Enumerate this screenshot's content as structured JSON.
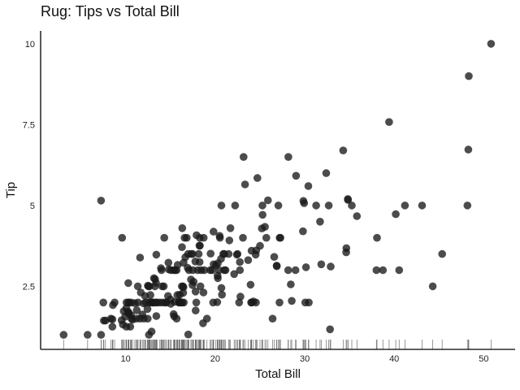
{
  "chart_data": {
    "type": "scatter",
    "title": "Rug: Tips vs Total Bill",
    "xlabel": "Total Bill",
    "ylabel": "Tip",
    "xlim": [
      0.5,
      53.5
    ],
    "ylim": [
      0.55,
      10.4
    ],
    "xticks": [
      10,
      20,
      30,
      40,
      50
    ],
    "xtick_labels": [
      "10",
      "20",
      "30",
      "40",
      "50"
    ],
    "yticks": [
      2.5,
      5,
      7.5,
      10
    ],
    "ytick_labels": [
      "2.5",
      "5",
      "7.5",
      "10"
    ],
    "grid": false,
    "legend": "none",
    "rug": "x-axis",
    "colors": {
      "points": "#1a1a1a",
      "rug": "#555555",
      "axis": "#000000"
    },
    "points": [
      [
        3.07,
        1.0
      ],
      [
        5.75,
        1.0
      ],
      [
        7.25,
        1.0
      ],
      [
        7.25,
        5.15
      ],
      [
        7.51,
        2.0
      ],
      [
        7.56,
        1.44
      ],
      [
        7.74,
        1.44
      ],
      [
        8.35,
        1.5
      ],
      [
        8.51,
        1.25
      ],
      [
        8.52,
        1.48
      ],
      [
        8.58,
        1.92
      ],
      [
        8.77,
        2.0
      ],
      [
        9.55,
        1.45
      ],
      [
        9.6,
        4.0
      ],
      [
        9.68,
        1.32
      ],
      [
        9.78,
        1.73
      ],
      [
        9.94,
        1.56
      ],
      [
        10.07,
        1.25
      ],
      [
        10.07,
        1.83
      ],
      [
        10.09,
        2.0
      ],
      [
        10.27,
        1.71
      ],
      [
        10.29,
        2.6
      ],
      [
        10.33,
        1.67
      ],
      [
        10.33,
        2.0
      ],
      [
        10.34,
        1.66
      ],
      [
        10.34,
        2.0
      ],
      [
        10.51,
        1.25
      ],
      [
        10.59,
        1.61
      ],
      [
        10.63,
        2.0
      ],
      [
        10.65,
        1.5
      ],
      [
        10.77,
        1.47
      ],
      [
        11.02,
        1.98
      ],
      [
        11.17,
        1.5
      ],
      [
        11.24,
        1.76
      ],
      [
        11.35,
        2.5
      ],
      [
        11.38,
        2.0
      ],
      [
        11.59,
        1.5
      ],
      [
        11.61,
        3.39
      ],
      [
        11.69,
        2.31
      ],
      [
        11.87,
        1.63
      ],
      [
        12.02,
        1.97
      ],
      [
        12.03,
        1.5
      ],
      [
        12.16,
        2.2
      ],
      [
        12.26,
        2.0
      ],
      [
        12.43,
        1.8
      ],
      [
        12.46,
        1.5
      ],
      [
        12.48,
        2.52
      ],
      [
        12.54,
        2.5
      ],
      [
        12.6,
        1.0
      ],
      [
        12.66,
        2.5
      ],
      [
        12.69,
        2.0
      ],
      [
        12.74,
        2.01
      ],
      [
        12.76,
        2.23
      ],
      [
        12.9,
        1.1
      ],
      [
        13.0,
        2.0
      ],
      [
        13.03,
        2.0
      ],
      [
        13.13,
        2.0
      ],
      [
        13.16,
        2.75
      ],
      [
        13.27,
        2.5
      ],
      [
        13.28,
        2.72
      ],
      [
        13.37,
        2.0
      ],
      [
        13.39,
        2.61
      ],
      [
        13.42,
        3.48
      ],
      [
        13.42,
        1.58
      ],
      [
        13.51,
        2.0
      ],
      [
        13.81,
        2.0
      ],
      [
        13.94,
        3.06
      ],
      [
        14.0,
        3.0
      ],
      [
        14.07,
        2.5
      ],
      [
        14.15,
        2.0
      ],
      [
        14.26,
        2.5
      ],
      [
        14.31,
        4.0
      ],
      [
        14.48,
        2.0
      ],
      [
        14.52,
        2.0
      ],
      [
        14.73,
        2.2
      ],
      [
        14.78,
        3.23
      ],
      [
        14.83,
        3.02
      ],
      [
        15.01,
        2.09
      ],
      [
        15.04,
        1.96
      ],
      [
        15.06,
        3.0
      ],
      [
        15.36,
        1.64
      ],
      [
        15.38,
        3.0
      ],
      [
        15.42,
        1.57
      ],
      [
        15.48,
        2.02
      ],
      [
        15.53,
        3.0
      ],
      [
        15.69,
        1.5
      ],
      [
        15.69,
        3.0
      ],
      [
        15.77,
        2.23
      ],
      [
        15.81,
        3.16
      ],
      [
        15.95,
        2.0
      ],
      [
        15.98,
        2.03
      ],
      [
        16.0,
        2.0
      ],
      [
        16.04,
        2.24
      ],
      [
        16.21,
        2.0
      ],
      [
        16.27,
        2.5
      ],
      [
        16.29,
        3.71
      ],
      [
        16.31,
        2.0
      ],
      [
        16.32,
        4.3
      ],
      [
        16.4,
        2.5
      ],
      [
        16.43,
        2.3
      ],
      [
        16.45,
        2.47
      ],
      [
        16.47,
        3.23
      ],
      [
        16.49,
        2.0
      ],
      [
        16.58,
        4.0
      ],
      [
        16.66,
        3.4
      ],
      [
        16.82,
        4.0
      ],
      [
        16.93,
        3.07
      ],
      [
        16.97,
        3.5
      ],
      [
        16.99,
        1.01
      ],
      [
        17.07,
        3.0
      ],
      [
        17.29,
        2.71
      ],
      [
        17.31,
        3.5
      ],
      [
        17.46,
        2.54
      ],
      [
        17.47,
        3.5
      ],
      [
        17.51,
        3.0
      ],
      [
        17.59,
        2.64
      ],
      [
        17.78,
        3.27
      ],
      [
        17.81,
        2.34
      ],
      [
        17.82,
        1.75
      ],
      [
        17.89,
        2.0
      ],
      [
        17.92,
        4.08
      ],
      [
        18.04,
        3.0
      ],
      [
        18.15,
        3.5
      ],
      [
        18.24,
        3.76
      ],
      [
        18.26,
        3.25
      ],
      [
        18.28,
        4.0
      ],
      [
        18.29,
        3.76
      ],
      [
        18.35,
        2.5
      ],
      [
        18.43,
        3.0
      ],
      [
        18.64,
        1.36
      ],
      [
        18.69,
        2.31
      ],
      [
        18.71,
        4.0
      ],
      [
        18.78,
        3.0
      ],
      [
        19.08,
        1.5
      ],
      [
        19.44,
        3.0
      ],
      [
        19.49,
        3.51
      ],
      [
        19.65,
        3.0
      ],
      [
        19.77,
        2.0
      ],
      [
        19.81,
        4.19
      ],
      [
        19.82,
        3.18
      ],
      [
        20.08,
        3.15
      ],
      [
        20.23,
        2.01
      ],
      [
        20.27,
        2.83
      ],
      [
        20.29,
        2.75
      ],
      [
        20.29,
        3.21
      ],
      [
        20.45,
        3.0
      ],
      [
        20.49,
        4.06
      ],
      [
        20.53,
        4.0
      ],
      [
        20.65,
        3.35
      ],
      [
        20.69,
        2.45
      ],
      [
        20.69,
        5.0
      ],
      [
        20.76,
        2.24
      ],
      [
        20.9,
        3.5
      ],
      [
        21.01,
        3.5
      ],
      [
        21.01,
        3.0
      ],
      [
        21.16,
        3.0
      ],
      [
        21.5,
        3.5
      ],
      [
        21.58,
        3.92
      ],
      [
        21.7,
        4.3
      ],
      [
        22.12,
        2.88
      ],
      [
        22.23,
        5.0
      ],
      [
        22.42,
        3.48
      ],
      [
        22.49,
        3.5
      ],
      [
        22.67,
        2.0
      ],
      [
        22.75,
        3.25
      ],
      [
        22.76,
        3.0
      ],
      [
        22.82,
        2.18
      ],
      [
        23.1,
        4.0
      ],
      [
        23.17,
        6.5
      ],
      [
        23.33,
        5.65
      ],
      [
        23.68,
        3.31
      ],
      [
        23.95,
        2.55
      ],
      [
        24.01,
        2.0
      ],
      [
        24.06,
        3.6
      ],
      [
        24.08,
        2.0
      ],
      [
        24.27,
        2.03
      ],
      [
        24.52,
        3.48
      ],
      [
        24.55,
        2.0
      ],
      [
        24.59,
        3.61
      ],
      [
        24.71,
        5.85
      ],
      [
        25.0,
        3.75
      ],
      [
        25.21,
        4.29
      ],
      [
        25.28,
        5.0
      ],
      [
        25.29,
        4.71
      ],
      [
        25.56,
        4.34
      ],
      [
        25.71,
        4.0
      ],
      [
        25.89,
        5.16
      ],
      [
        26.41,
        1.5
      ],
      [
        26.59,
        3.41
      ],
      [
        26.86,
        3.14
      ],
      [
        26.88,
        3.12
      ],
      [
        27.05,
        5.0
      ],
      [
        27.18,
        2.0
      ],
      [
        27.2,
        4.0
      ],
      [
        27.28,
        4.0
      ],
      [
        28.15,
        3.0
      ],
      [
        28.17,
        6.5
      ],
      [
        28.44,
        2.56
      ],
      [
        28.55,
        2.05
      ],
      [
        28.97,
        3.0
      ],
      [
        29.03,
        5.92
      ],
      [
        29.8,
        4.2
      ],
      [
        29.85,
        5.14
      ],
      [
        29.93,
        5.07
      ],
      [
        30.06,
        2.0
      ],
      [
        30.14,
        3.09
      ],
      [
        30.4,
        5.6
      ],
      [
        30.46,
        2.0
      ],
      [
        31.27,
        5.0
      ],
      [
        31.71,
        4.5
      ],
      [
        31.85,
        3.18
      ],
      [
        32.4,
        6.0
      ],
      [
        32.68,
        5.0
      ],
      [
        32.83,
        1.17
      ],
      [
        32.9,
        3.11
      ],
      [
        34.3,
        6.7
      ],
      [
        34.63,
        3.55
      ],
      [
        34.65,
        3.68
      ],
      [
        34.81,
        5.2
      ],
      [
        34.83,
        5.17
      ],
      [
        35.26,
        5.0
      ],
      [
        35.83,
        4.67
      ],
      [
        38.01,
        3.0
      ],
      [
        38.07,
        4.0
      ],
      [
        38.73,
        3.0
      ],
      [
        39.42,
        7.58
      ],
      [
        40.17,
        4.73
      ],
      [
        40.55,
        3.0
      ],
      [
        41.19,
        5.0
      ],
      [
        43.11,
        5.0
      ],
      [
        44.3,
        2.5
      ],
      [
        45.35,
        3.5
      ],
      [
        48.17,
        5.0
      ],
      [
        48.27,
        6.73
      ],
      [
        48.33,
        9.0
      ],
      [
        50.81,
        10.0
      ]
    ]
  }
}
